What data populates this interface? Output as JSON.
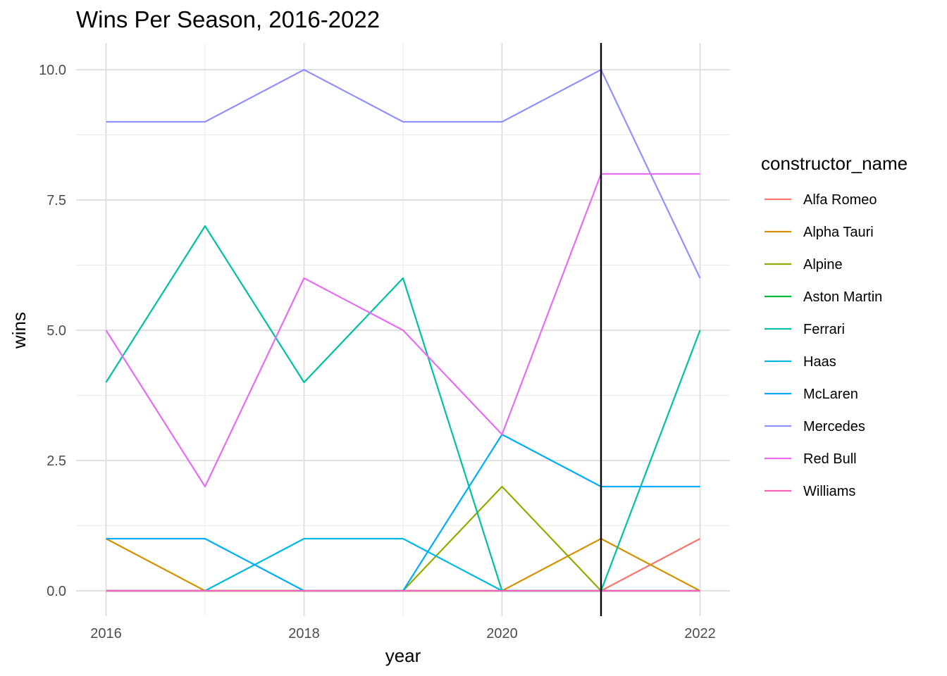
{
  "chart_data": {
    "type": "line",
    "title": "Wins Per Season, 2016-2022",
    "xlabel": "year",
    "ylabel": "wins",
    "x": [
      2016,
      2017,
      2018,
      2019,
      2020,
      2021,
      2022
    ],
    "x_ticks": [
      "2016",
      "2018",
      "2020",
      "2022"
    ],
    "y_ticks": [
      "0.0",
      "2.5",
      "5.0",
      "7.5",
      "10.0"
    ],
    "xlim": [
      2016,
      2022
    ],
    "ylim": [
      0,
      10
    ],
    "grid": true,
    "vline_x": 2021,
    "legend_title": "constructor_name",
    "legend_position": "right",
    "series": [
      {
        "name": "Alfa Romeo",
        "color": "#F8766D",
        "values": [
          0,
          0,
          0,
          0,
          0,
          0,
          1
        ]
      },
      {
        "name": "Alpha Tauri",
        "color": "#D39200",
        "values": [
          1,
          0,
          0,
          0,
          0,
          1,
          0
        ]
      },
      {
        "name": "Alpine",
        "color": "#93AA00",
        "values": [
          0,
          0,
          0,
          0,
          2,
          0,
          0
        ]
      },
      {
        "name": "Aston Martin",
        "color": "#00BA38",
        "values": [
          0,
          0,
          0,
          0,
          0,
          0,
          0
        ]
      },
      {
        "name": "Ferrari",
        "color": "#00C19F",
        "values": [
          4,
          7,
          4,
          6,
          0,
          0,
          5
        ]
      },
      {
        "name": "Haas",
        "color": "#00B9E3",
        "values": [
          0,
          0,
          1,
          1,
          0,
          0,
          0
        ]
      },
      {
        "name": "McLaren",
        "color": "#00ADFA",
        "values": [
          1,
          1,
          0,
          0,
          3,
          2,
          2
        ]
      },
      {
        "name": "Mercedes",
        "color": "#8F91FF",
        "values": [
          9,
          9,
          10,
          9,
          9,
          10,
          6
        ]
      },
      {
        "name": "Red Bull",
        "color": "#E76BF3",
        "values": [
          5,
          2,
          6,
          5,
          3,
          8,
          8
        ]
      },
      {
        "name": "Williams",
        "color": "#FF62BC",
        "values": [
          0,
          0,
          0,
          0,
          0,
          0,
          0
        ]
      }
    ]
  }
}
